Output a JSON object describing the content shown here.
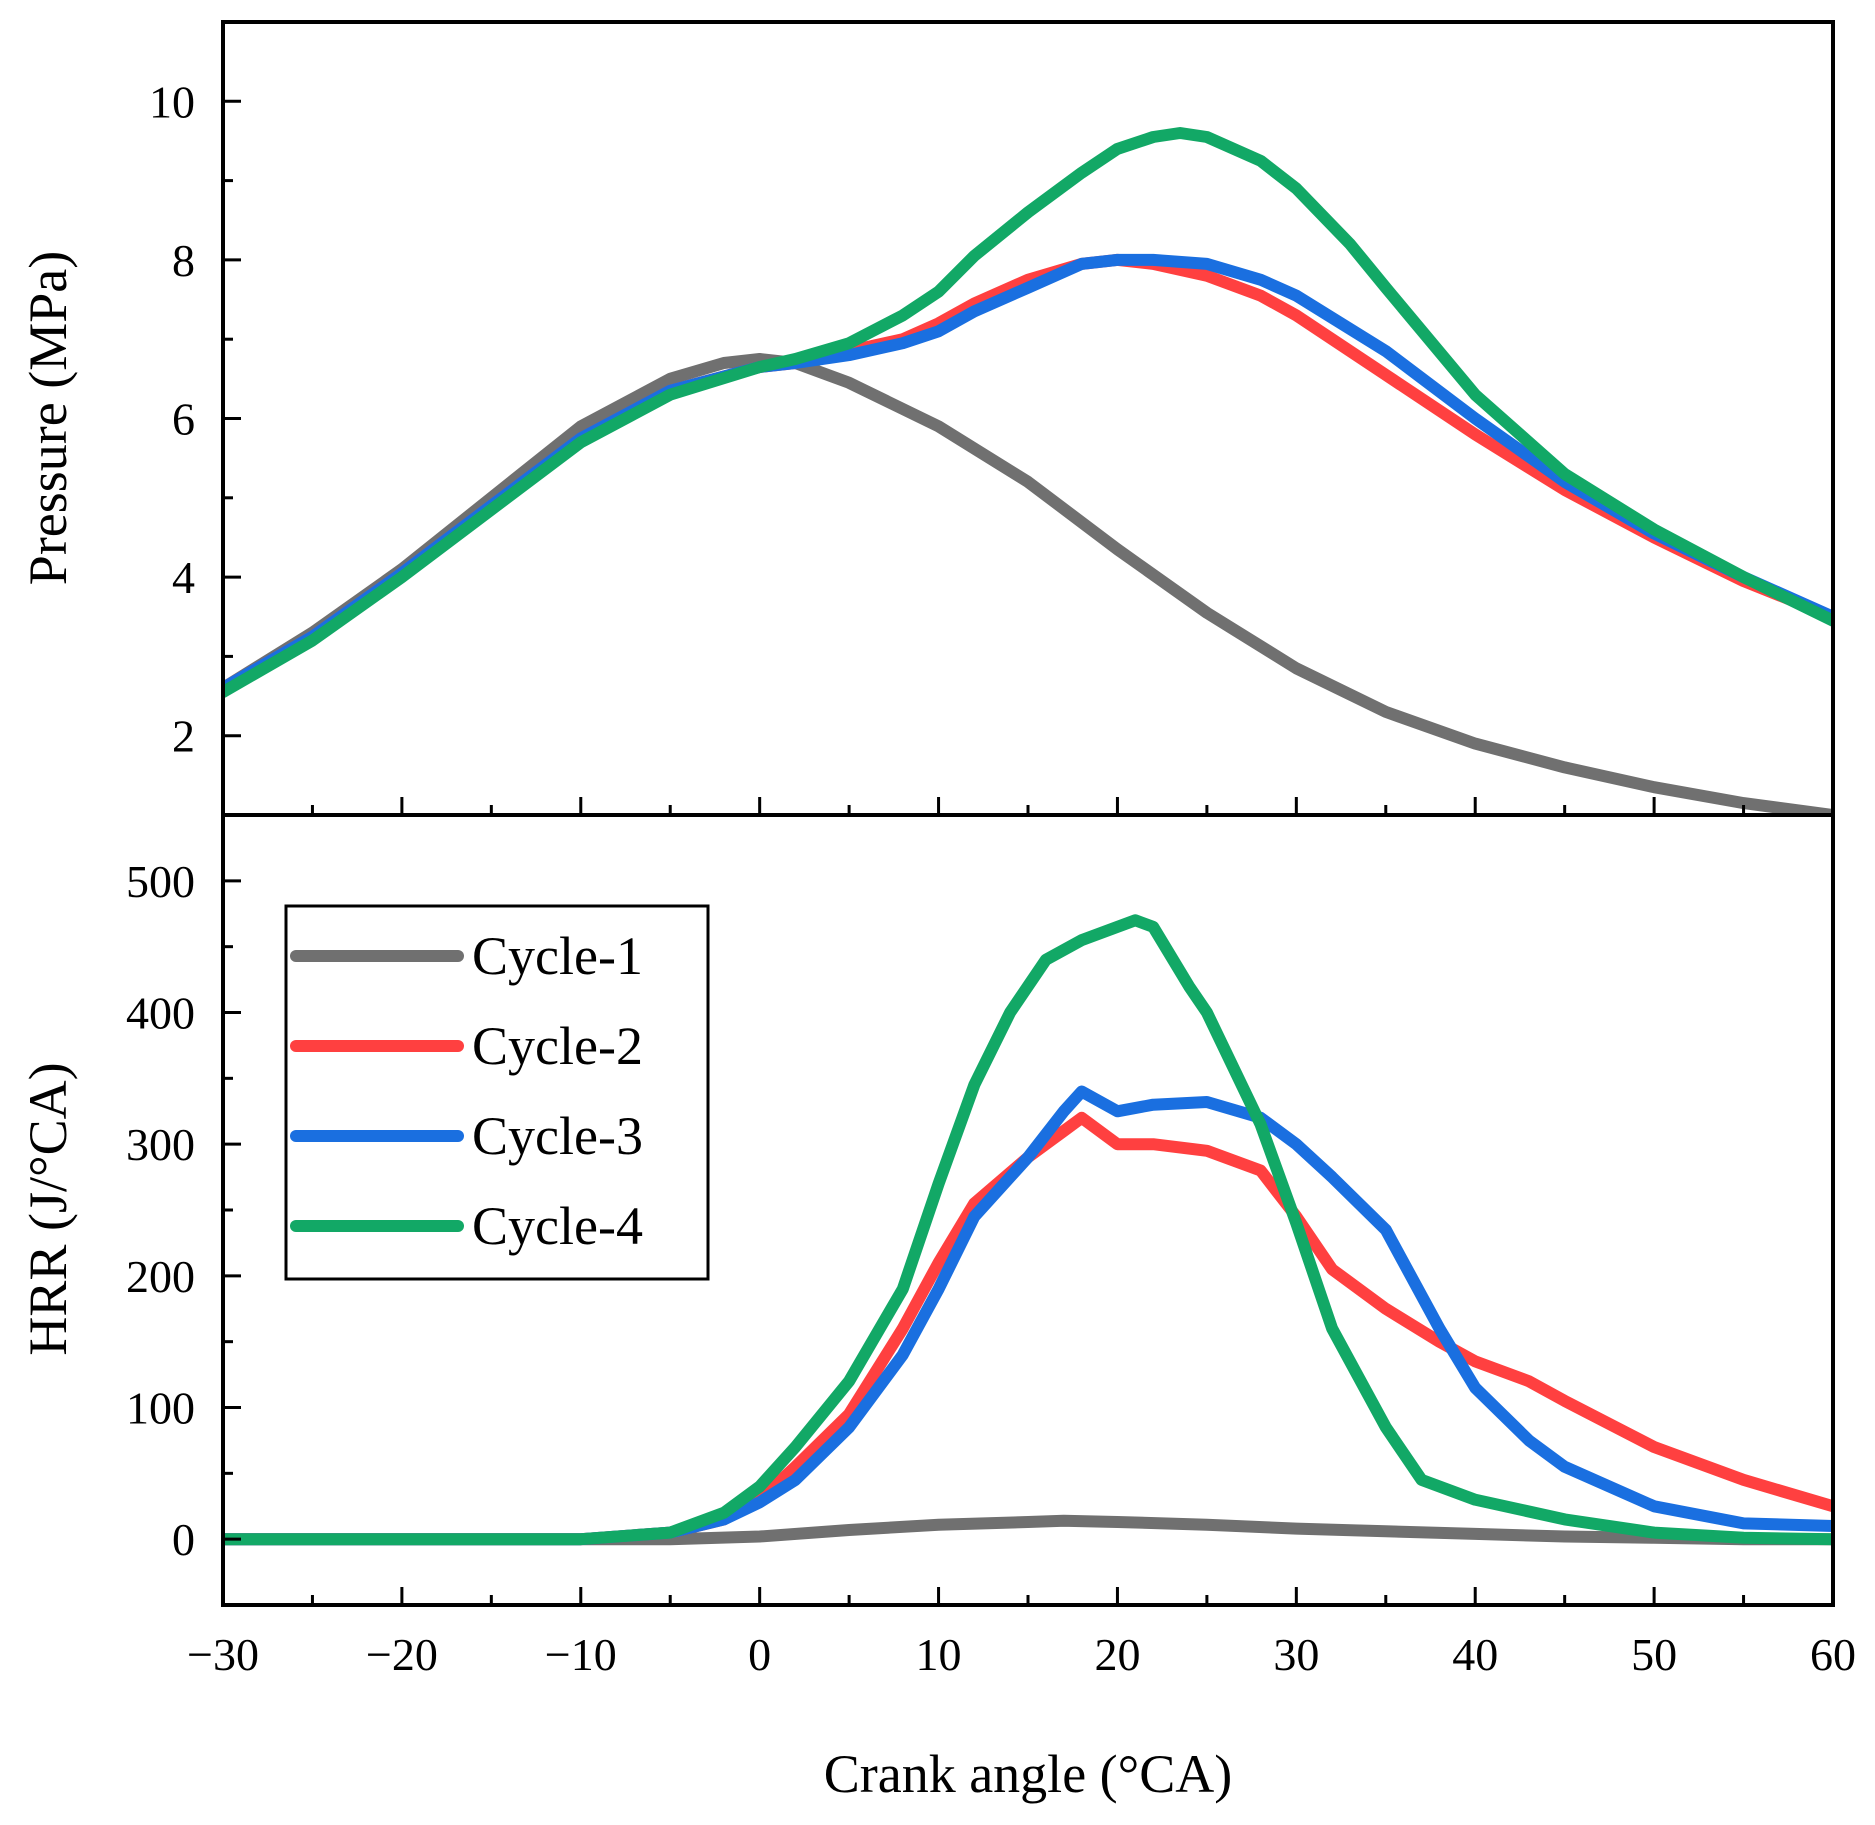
{
  "chart_data": [
    {
      "type": "line",
      "panel": "top",
      "ylabel": "Pressure (MPa)",
      "xlabel": "",
      "xlim": [
        -30,
        60
      ],
      "ylim": [
        1,
        11
      ],
      "yticks": [
        2,
        4,
        6,
        8,
        10
      ],
      "series": [
        {
          "name": "Cycle-1",
          "color": "#707070",
          "x": [
            -30,
            -25,
            -20,
            -15,
            -10,
            -5,
            -2,
            0,
            2,
            5,
            10,
            15,
            20,
            25,
            30,
            35,
            40,
            45,
            50,
            55,
            60
          ],
          "y": [
            2.6,
            3.3,
            4.1,
            5.0,
            5.9,
            6.5,
            6.7,
            6.75,
            6.7,
            6.45,
            5.9,
            5.2,
            4.35,
            3.55,
            2.85,
            2.3,
            1.9,
            1.6,
            1.35,
            1.15,
            1.0
          ]
        },
        {
          "name": "Cycle-2",
          "color": "#ff4040",
          "x": [
            -30,
            -25,
            -20,
            -15,
            -10,
            -5,
            0,
            2,
            5,
            8,
            10,
            12,
            15,
            18,
            20,
            22,
            25,
            28,
            30,
            35,
            40,
            45,
            50,
            55,
            60
          ],
          "y": [
            2.6,
            3.25,
            4.05,
            4.9,
            5.75,
            6.35,
            6.65,
            6.7,
            6.85,
            7.0,
            7.2,
            7.45,
            7.75,
            7.95,
            8.0,
            7.95,
            7.8,
            7.55,
            7.3,
            6.55,
            5.8,
            5.1,
            4.5,
            3.95,
            3.5
          ]
        },
        {
          "name": "Cycle-3",
          "color": "#1a6fe0",
          "x": [
            -30,
            -25,
            -20,
            -15,
            -10,
            -5,
            0,
            2,
            5,
            8,
            10,
            12,
            15,
            18,
            20,
            22,
            25,
            28,
            30,
            35,
            40,
            45,
            50,
            55,
            60
          ],
          "y": [
            2.6,
            3.25,
            4.05,
            4.9,
            5.75,
            6.35,
            6.65,
            6.7,
            6.8,
            6.95,
            7.1,
            7.35,
            7.65,
            7.95,
            8.0,
            8.0,
            7.95,
            7.75,
            7.55,
            6.85,
            6.0,
            5.2,
            4.55,
            4.0,
            3.5
          ]
        },
        {
          "name": "Cycle-4",
          "color": "#12a866",
          "x": [
            -30,
            -25,
            -20,
            -15,
            -10,
            -5,
            0,
            2,
            5,
            8,
            10,
            12,
            15,
            18,
            20,
            22,
            23.5,
            25,
            28,
            30,
            33,
            35,
            40,
            45,
            50,
            55,
            60
          ],
          "y": [
            2.55,
            3.2,
            4.0,
            4.85,
            5.7,
            6.3,
            6.65,
            6.75,
            6.95,
            7.3,
            7.6,
            8.05,
            8.6,
            9.1,
            9.4,
            9.55,
            9.6,
            9.55,
            9.25,
            8.9,
            8.2,
            7.65,
            6.3,
            5.3,
            4.6,
            4.0,
            3.45
          ]
        }
      ]
    },
    {
      "type": "line",
      "panel": "bottom",
      "ylabel": "HRR (J/°CA)",
      "xlabel": "Crank angle (°CA)",
      "xlim": [
        -30,
        60
      ],
      "ylim": [
        -50,
        550
      ],
      "yticks": [
        0,
        100,
        200,
        300,
        400,
        500
      ],
      "xticks": [
        -30,
        -20,
        -10,
        0,
        10,
        20,
        30,
        40,
        50,
        60
      ],
      "xtick_labels": [
        "−30",
        "−20",
        "−10",
        "0",
        "10",
        "20",
        "30",
        "40",
        "50",
        "60"
      ],
      "legend": {
        "position": "upper-left",
        "entries": [
          "Cycle-1",
          "Cycle-2",
          "Cycle-3",
          "Cycle-4"
        ]
      },
      "series": [
        {
          "name": "Cycle-1",
          "color": "#707070",
          "x": [
            -30,
            -10,
            -5,
            0,
            5,
            10,
            15,
            17,
            20,
            25,
            30,
            35,
            40,
            45,
            50,
            55,
            60
          ],
          "y": [
            0,
            0,
            0,
            2,
            7,
            11,
            13,
            14,
            13,
            11,
            8,
            6,
            4,
            2,
            1,
            0,
            0
          ]
        },
        {
          "name": "Cycle-2",
          "color": "#ff4040",
          "x": [
            -30,
            -10,
            -5,
            -2,
            0,
            2,
            5,
            8,
            10,
            12,
            15,
            17,
            18,
            20,
            22,
            25,
            28,
            30,
            32,
            35,
            38,
            40,
            43,
            45,
            50,
            55,
            60
          ],
          "y": [
            0,
            0,
            5,
            15,
            30,
            55,
            95,
            160,
            210,
            255,
            290,
            310,
            320,
            300,
            300,
            295,
            280,
            245,
            205,
            175,
            150,
            135,
            120,
            105,
            70,
            45,
            25
          ]
        },
        {
          "name": "Cycle-3",
          "color": "#1a6fe0",
          "x": [
            -30,
            -10,
            -5,
            -2,
            0,
            2,
            5,
            8,
            10,
            12,
            15,
            17,
            18,
            20,
            22,
            25,
            28,
            30,
            32,
            35,
            38,
            40,
            43,
            45,
            50,
            55,
            60
          ],
          "y": [
            0,
            0,
            5,
            15,
            28,
            45,
            85,
            140,
            190,
            245,
            290,
            325,
            340,
            325,
            330,
            332,
            320,
            300,
            275,
            235,
            160,
            115,
            75,
            55,
            25,
            12,
            10
          ]
        },
        {
          "name": "Cycle-4",
          "color": "#12a866",
          "x": [
            -30,
            -10,
            -5,
            -2,
            0,
            2,
            5,
            8,
            10,
            12,
            14,
            16,
            18,
            20,
            21,
            22,
            24,
            25,
            28,
            30,
            32,
            35,
            37,
            40,
            45,
            50,
            55,
            60
          ],
          "y": [
            0,
            0,
            5,
            20,
            40,
            70,
            120,
            190,
            270,
            345,
            400,
            440,
            455,
            465,
            470,
            465,
            420,
            400,
            315,
            240,
            160,
            85,
            45,
            30,
            15,
            5,
            1,
            0
          ]
        }
      ]
    }
  ]
}
